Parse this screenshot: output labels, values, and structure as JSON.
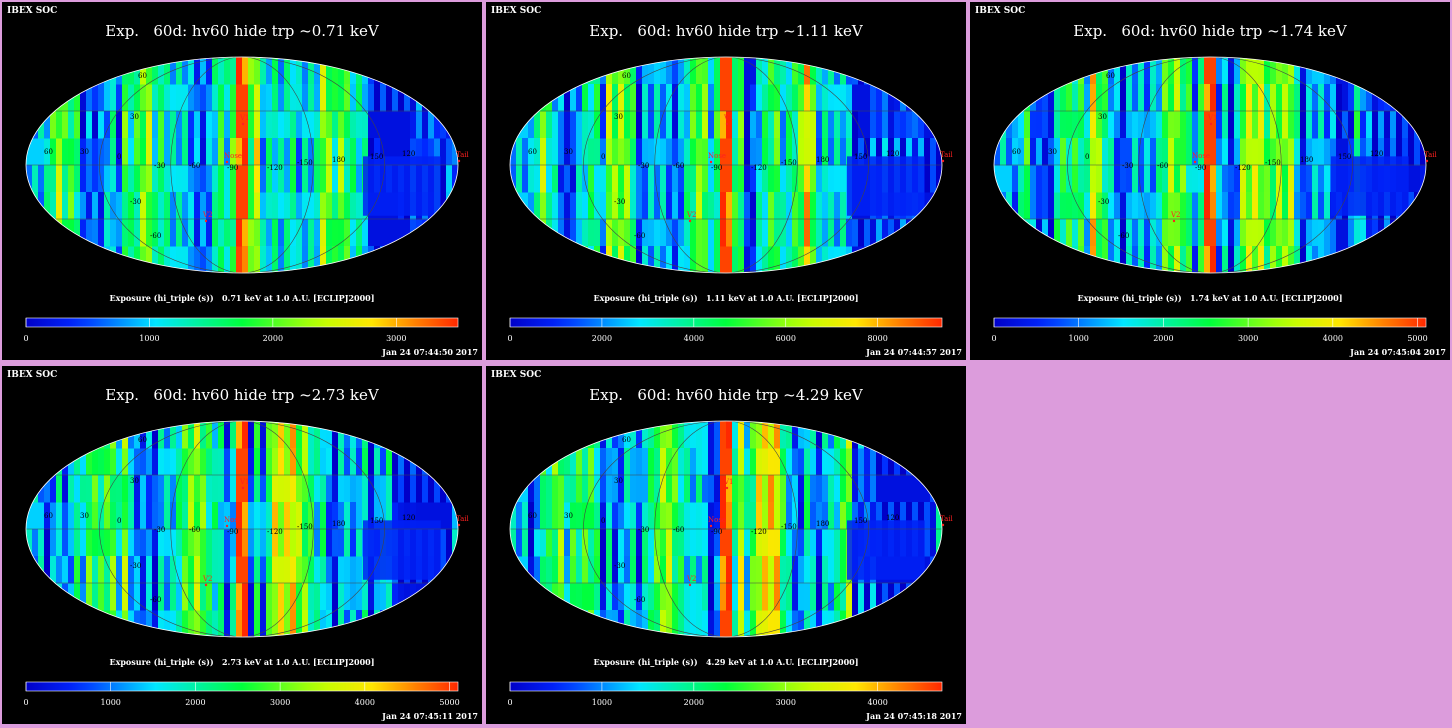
{
  "chart_data": [
    {
      "type": "heatmap",
      "header": "IBEX SOC",
      "title": "Exp.   60d: hv60 hide trp ~0.71 keV",
      "caption": "Exposure (hi_triple (s))   0.71 keV at 1.0 A.U. [ECLIPJ2000]",
      "timestamp": "Jan 24 07:44:50 2017",
      "colorbar_ticks": [
        "0",
        "1000",
        "2000",
        "3000"
      ],
      "colorbar_range": [
        0,
        3500
      ],
      "longitude_labels": [
        "60",
        "30",
        "0",
        "-30",
        "-60",
        "-90",
        "-120",
        "-150",
        "180",
        "150",
        "120"
      ],
      "latitude_labels": [
        "60",
        "30",
        "-30",
        "-60"
      ],
      "markers": [
        "V1",
        "V2",
        "Nose",
        "Tail"
      ]
    },
    {
      "type": "heatmap",
      "header": "IBEX SOC",
      "title": "Exp.   60d: hv60 hide trp ~1.11 keV",
      "caption": "Exposure (hi_triple (s))   1.11 keV at 1.0 A.U. [ECLIPJ2000]",
      "timestamp": "Jan 24 07:44:57 2017",
      "colorbar_ticks": [
        "0",
        "2000",
        "4000",
        "6000",
        "8000"
      ],
      "colorbar_range": [
        0,
        9400
      ],
      "longitude_labels": [
        "60",
        "30",
        "0",
        "-30",
        "-60",
        "-90",
        "-120",
        "-150",
        "180",
        "150",
        "120"
      ],
      "latitude_labels": [
        "60",
        "30",
        "-30",
        "-60"
      ],
      "markers": [
        "V1",
        "V2",
        "Nose",
        "Tail"
      ]
    },
    {
      "type": "heatmap",
      "header": "IBEX SOC",
      "title": "Exp.   60d: hv60 hide trp ~1.74 keV",
      "caption": "Exposure (hi_triple (s))   1.74 keV at 1.0 A.U. [ECLIPJ2000]",
      "timestamp": "Jan 24 07:45:04 2017",
      "colorbar_ticks": [
        "0",
        "1000",
        "2000",
        "3000",
        "4000",
        "5000"
      ],
      "colorbar_range": [
        0,
        5100
      ],
      "longitude_labels": [
        "60",
        "30",
        "0",
        "-30",
        "-60",
        "-90",
        "-120",
        "-150",
        "180",
        "150",
        "120"
      ],
      "latitude_labels": [
        "60",
        "30",
        "-30",
        "-60"
      ],
      "markers": [
        "V1",
        "V2",
        "Nose",
        "Tail"
      ]
    },
    {
      "type": "heatmap",
      "header": "IBEX SOC",
      "title": "Exp.   60d: hv60 hide trp ~2.73 keV",
      "caption": "Exposure (hi_triple (s))   2.73 keV at 1.0 A.U. [ECLIPJ2000]",
      "timestamp": "Jan 24 07:45:11 2017",
      "colorbar_ticks": [
        "0",
        "1000",
        "2000",
        "3000",
        "4000",
        "5000"
      ],
      "colorbar_range": [
        0,
        5100
      ],
      "longitude_labels": [
        "60",
        "30",
        "0",
        "-30",
        "-60",
        "-90",
        "-120",
        "-150",
        "180",
        "150",
        "120"
      ],
      "latitude_labels": [
        "60",
        "30",
        "-30",
        "-60"
      ],
      "markers": [
        "V1",
        "V2",
        "Nose",
        "Tail"
      ]
    },
    {
      "type": "heatmap",
      "header": "IBEX SOC",
      "title": "Exp.   60d: hv60 hide trp ~4.29 keV",
      "caption": "Exposure (hi_triple (s))   4.29 keV at 1.0 A.U. [ECLIPJ2000]",
      "timestamp": "Jan 24 07:45:18 2017",
      "colorbar_ticks": [
        "0",
        "1000",
        "2000",
        "3000",
        "4000"
      ],
      "colorbar_range": [
        0,
        4700
      ],
      "longitude_labels": [
        "60",
        "30",
        "0",
        "-30",
        "-60",
        "-90",
        "-120",
        "-150",
        "180",
        "150",
        "120"
      ],
      "latitude_labels": [
        "60",
        "30",
        "-30",
        "-60"
      ],
      "markers": [
        "V1",
        "V2",
        "Nose",
        "Tail"
      ]
    }
  ],
  "colors": {
    "page_background": "#dc9cdc",
    "panel_background": "#000000",
    "text": "#ffffff",
    "marker": "#ff2020",
    "grid": "#444444"
  }
}
